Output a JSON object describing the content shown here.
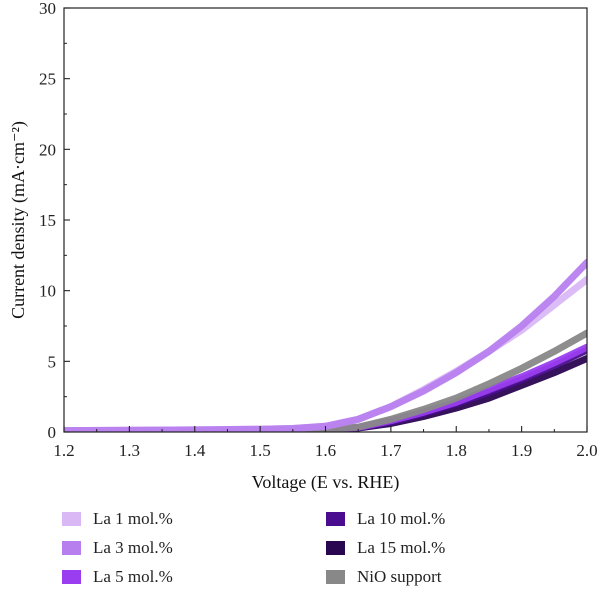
{
  "chart_data": {
    "type": "line",
    "title": "",
    "xlabel": "Voltage (E vs. RHE)",
    "ylabel": "Current density (mA·cm⁻²)",
    "xlim": [
      1.2,
      2.0
    ],
    "ylim": [
      0,
      30
    ],
    "xticks": [
      "1.2",
      "1.3",
      "1.4",
      "1.5",
      "1.6",
      "1.7",
      "1.8",
      "1.9",
      "2.0"
    ],
    "yticks": [
      "0",
      "5",
      "10",
      "15",
      "20",
      "25",
      "30"
    ],
    "grid": false,
    "legend_position": "bottom",
    "x": [
      1.2,
      1.3,
      1.4,
      1.5,
      1.55,
      1.6,
      1.65,
      1.7,
      1.75,
      1.8,
      1.85,
      1.9,
      1.95,
      2.0
    ],
    "series": [
      {
        "name": "La 1 mol.%",
        "color": "#dab8f5",
        "values": [
          0.1,
          0.12,
          0.15,
          0.2,
          0.25,
          0.4,
          0.9,
          1.8,
          3.0,
          4.3,
          5.7,
          7.2,
          9.0,
          10.8
        ]
      },
      {
        "name": "La 3 mol.%",
        "color": "#b77fee",
        "values": [
          0.1,
          0.12,
          0.15,
          0.2,
          0.25,
          0.4,
          0.9,
          1.8,
          2.9,
          4.2,
          5.7,
          7.5,
          9.6,
          12.0
        ]
      },
      {
        "name": "La 5 mol.%",
        "color": "#9a3df0",
        "values": [
          0.08,
          0.1,
          0.12,
          0.15,
          0.18,
          0.22,
          0.32,
          0.8,
          1.4,
          2.1,
          3.0,
          3.9,
          4.9,
          6.0
        ]
      },
      {
        "name": "La 10 mol.%",
        "color": "#4a0d8f",
        "values": [
          0.08,
          0.1,
          0.12,
          0.15,
          0.18,
          0.22,
          0.3,
          0.7,
          1.3,
          2.0,
          2.8,
          3.7,
          4.7,
          5.8
        ]
      },
      {
        "name": "La 15 mol.%",
        "color": "#2a0550",
        "values": [
          0.08,
          0.1,
          0.12,
          0.15,
          0.18,
          0.2,
          0.28,
          0.6,
          1.1,
          1.7,
          2.4,
          3.3,
          4.2,
          5.2
        ]
      },
      {
        "name": "NiO support",
        "color": "#888888",
        "values": [
          0.08,
          0.1,
          0.12,
          0.15,
          0.18,
          0.22,
          0.35,
          0.9,
          1.6,
          2.4,
          3.4,
          4.5,
          5.7,
          7.0
        ]
      }
    ]
  }
}
